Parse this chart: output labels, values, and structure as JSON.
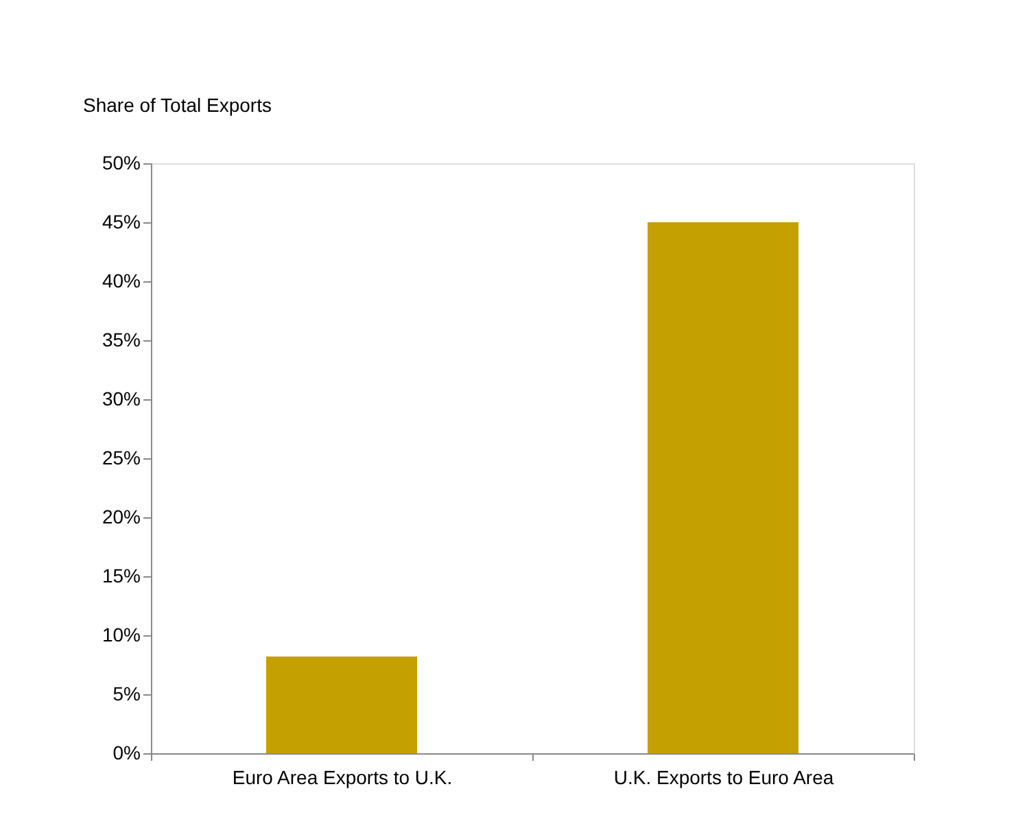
{
  "chart_data": {
    "type": "bar",
    "ylabel": "Share of Total Exports",
    "categories": [
      "Euro Area Exports to U.K.",
      "U.K. Exports to Euro Area"
    ],
    "values": [
      8.2,
      45
    ],
    "color": "#c4a000",
    "ylim": [
      0,
      50
    ],
    "yticks": [
      {
        "value": 0,
        "label": "0%"
      },
      {
        "value": 5,
        "label": "5%"
      },
      {
        "value": 10,
        "label": "10%"
      },
      {
        "value": 15,
        "label": "15%"
      },
      {
        "value": 20,
        "label": "20%"
      },
      {
        "value": 25,
        "label": "25%"
      },
      {
        "value": 30,
        "label": "30%"
      },
      {
        "value": 35,
        "label": "35%"
      },
      {
        "value": 40,
        "label": "40%"
      },
      {
        "value": 45,
        "label": "45%"
      },
      {
        "value": 50,
        "label": "50%"
      }
    ],
    "grid": false
  }
}
